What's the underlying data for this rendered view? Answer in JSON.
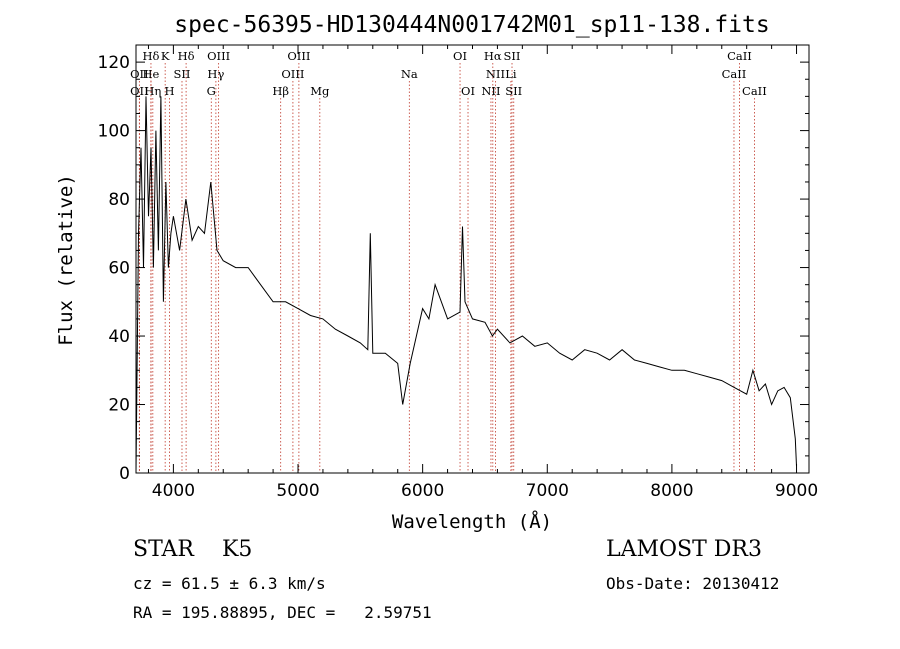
{
  "chart_data": {
    "type": "line",
    "title": "spec-56395-HD130444N001742M01_sp11-138.fits",
    "xlabel": "Wavelength (Å)",
    "ylabel": "Flux (relative)",
    "xlim": [
      3700,
      9100
    ],
    "ylim": [
      0,
      125
    ],
    "xticks": [
      4000,
      5000,
      6000,
      7000,
      8000,
      9000
    ],
    "yticks": [
      0,
      20,
      40,
      60,
      80,
      100,
      120
    ],
    "series": [
      {
        "name": "flux",
        "x": [
          3700,
          3720,
          3740,
          3760,
          3780,
          3800,
          3820,
          3840,
          3860,
          3880,
          3900,
          3920,
          3940,
          3960,
          3980,
          4000,
          4050,
          4100,
          4150,
          4200,
          4250,
          4300,
          4350,
          4400,
          4500,
          4600,
          4700,
          4800,
          4900,
          5000,
          5100,
          5200,
          5300,
          5400,
          5500,
          5560,
          5580,
          5600,
          5700,
          5800,
          5840,
          5880,
          5900,
          5950,
          6000,
          6050,
          6100,
          6200,
          6300,
          6320,
          6340,
          6400,
          6500,
          6560,
          6600,
          6700,
          6800,
          6900,
          7000,
          7100,
          7200,
          7300,
          7400,
          7500,
          7600,
          7700,
          7800,
          7900,
          8000,
          8100,
          8200,
          8300,
          8400,
          8500,
          8600,
          8650,
          8700,
          8750,
          8800,
          8850,
          8900,
          8950,
          8990,
          9000
        ],
        "y": [
          0,
          70,
          95,
          60,
          110,
          75,
          95,
          60,
          100,
          65,
          110,
          50,
          85,
          60,
          70,
          75,
          65,
          80,
          68,
          72,
          70,
          85,
          65,
          62,
          60,
          60,
          55,
          50,
          50,
          48,
          46,
          45,
          42,
          40,
          38,
          36,
          70,
          35,
          35,
          32,
          20,
          28,
          32,
          40,
          48,
          45,
          55,
          45,
          47,
          72,
          50,
          45,
          44,
          40,
          42,
          38,
          40,
          37,
          38,
          35,
          33,
          36,
          35,
          33,
          36,
          33,
          32,
          31,
          30,
          30,
          29,
          28,
          27,
          25,
          23,
          30,
          24,
          26,
          20,
          24,
          25,
          22,
          10,
          2
        ]
      }
    ],
    "lines_top": [
      {
        "label": "Hδ",
        "x": 3820
      },
      {
        "label": "K",
        "x": 3934
      },
      {
        "label": "Hδ",
        "x": 4102
      },
      {
        "label": "OIII",
        "x": 4363
      },
      {
        "label": "OIII",
        "x": 5007
      },
      {
        "label": "OI",
        "x": 6300
      },
      {
        "label": "Hα",
        "x": 6563
      },
      {
        "label": "SII",
        "x": 6717
      },
      {
        "label": "CaII",
        "x": 8542
      }
    ],
    "lines_mid": [
      {
        "label": "OII",
        "x": 3727
      },
      {
        "label": "He",
        "x": 3820
      },
      {
        "label": "SII",
        "x": 4069
      },
      {
        "label": "Hγ",
        "x": 4341
      },
      {
        "label": "OIII",
        "x": 4959
      },
      {
        "label": "Na",
        "x": 5893
      },
      {
        "label": "NII",
        "x": 6584
      },
      {
        "label": "Li",
        "x": 6708
      },
      {
        "label": "CaII",
        "x": 8498
      }
    ],
    "lines_bottom": [
      {
        "label": "OII",
        "x": 3727
      },
      {
        "label": "Hη",
        "x": 3835
      },
      {
        "label": "H",
        "x": 3969
      },
      {
        "label": "G",
        "x": 4304
      },
      {
        "label": "Hβ",
        "x": 4861
      },
      {
        "label": "Mg",
        "x": 5175
      },
      {
        "label": "OI",
        "x": 6364
      },
      {
        "label": "NII",
        "x": 6548
      },
      {
        "label": "SII",
        "x": 6731
      },
      {
        "label": "CaII",
        "x": 8662
      }
    ]
  },
  "info": {
    "class_text": "STAR    K5",
    "cz_text": "cz = 61.5 ± 6.3 km/s",
    "radec_text": "RA = 195.88895, DEC =   2.59751",
    "survey_text": "LAMOST DR3",
    "obsdate_text": "Obs-Date: 20130412"
  }
}
